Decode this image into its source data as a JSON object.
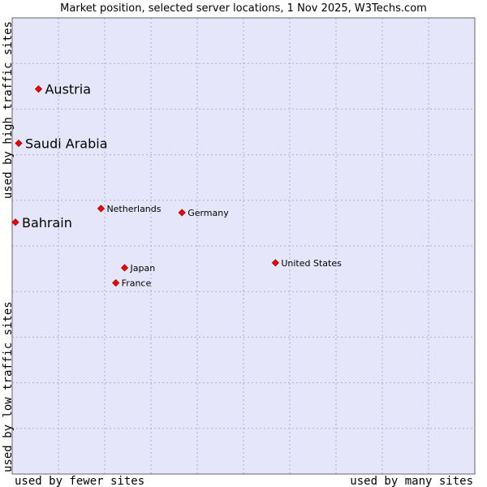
{
  "chart_data": {
    "type": "scatter",
    "title": "Market position, selected server locations, 1 Nov 2025, W3Techs.com",
    "xlabel_left": "used by fewer sites",
    "xlabel_right": "used by many sites",
    "ylabel_top": "used by high traffic sites",
    "ylabel_bottom": "used by low traffic sites",
    "xlim": [
      0,
      100
    ],
    "ylim": [
      0,
      100
    ],
    "grid": true,
    "colors": {
      "plot_bg": "#e6e6fa",
      "grid": "#aaaacc",
      "border": "#666666",
      "point": "#ff0000",
      "point_edge": "#990000"
    },
    "points": [
      {
        "label": "Austria",
        "x": 5.7,
        "y": 84.4,
        "highlight": true
      },
      {
        "label": "Saudi Arabia",
        "x": 1.4,
        "y": 72.5,
        "highlight": true
      },
      {
        "label": "Bahrain",
        "x": 0.7,
        "y": 55.2,
        "highlight": true
      },
      {
        "label": "Netherlands",
        "x": 19.2,
        "y": 58.2,
        "highlight": false
      },
      {
        "label": "Germany",
        "x": 36.7,
        "y": 57.3,
        "highlight": false
      },
      {
        "label": "United States",
        "x": 56.9,
        "y": 46.3,
        "highlight": false
      },
      {
        "label": "Japan",
        "x": 24.3,
        "y": 45.2,
        "highlight": false
      },
      {
        "label": "France",
        "x": 22.4,
        "y": 41.9,
        "highlight": false
      }
    ]
  }
}
